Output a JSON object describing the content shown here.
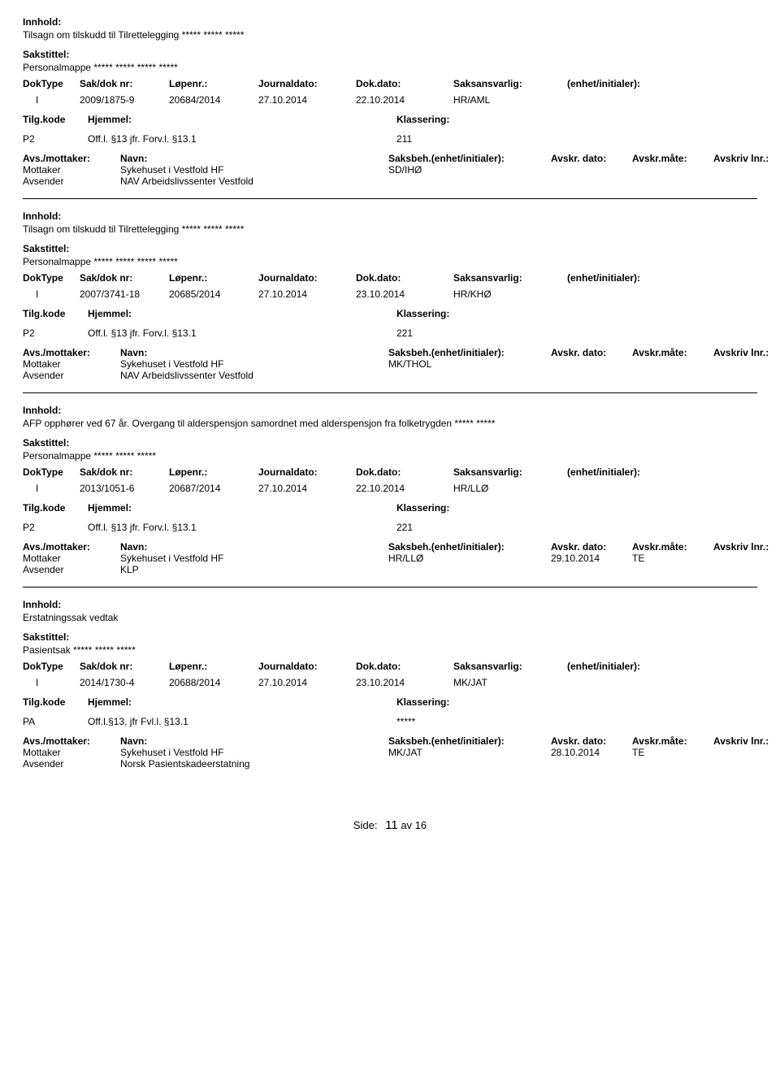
{
  "labels": {
    "innhold": "Innhold:",
    "sakstittel": "Sakstittel:",
    "dokType": "DokType",
    "sakDokNr": "Sak/dok nr:",
    "lopenr": "Løpenr.:",
    "journaldato": "Journaldato:",
    "dokDato": "Dok.dato:",
    "saksansvarlig": "Saksansvarlig:",
    "enhetInitialer": "(enhet/initialer):",
    "tilgKode": "Tilg.kode",
    "hjemmel": "Hjemmel:",
    "klassering": "Klassering:",
    "avsMottaker": "Avs./mottaker:",
    "navn": "Navn:",
    "saksbehEI": "Saksbeh.(enhet/initialer):",
    "avskrDato": "Avskr. dato:",
    "avskrMate": "Avskr.måte:",
    "avskrivLnr": "Avskriv lnr.:",
    "mottaker": "Mottaker",
    "avsender": "Avsender",
    "side": "Side:",
    "av": "av"
  },
  "footer": {
    "page": "11",
    "total": "16"
  },
  "records": [
    {
      "innhold": "Tilsagn om tilskudd til Tilrettelegging ***** ***** *****",
      "sakstittel": "Personalmappe ***** ***** ***** *****",
      "dokType": "I",
      "sakDokNr": "2009/1875-9",
      "lopenr": "20684/2014",
      "journaldato": "27.10.2014",
      "dokDato": "22.10.2014",
      "saksansvarlig": "HR/AML",
      "tilgKode": "P2",
      "hjemmel": "Off.l. §13  jfr. Forv.l. §13.1",
      "klassering": "211",
      "mottakerNavn": "Sykehuset i Vestfold HF",
      "avsenderNavn": "NAV Arbeidslivssenter Vestfold",
      "saksbeh": "SD/IHØ",
      "avskrDato": "",
      "avskrMate": ""
    },
    {
      "innhold": "Tilsagn om tilskudd til Tilrettelegging ***** ***** *****",
      "sakstittel": "Personalmappe ***** ***** ***** *****",
      "dokType": "I",
      "sakDokNr": "2007/3741-18",
      "lopenr": "20685/2014",
      "journaldato": "27.10.2014",
      "dokDato": "23.10.2014",
      "saksansvarlig": "HR/KHØ",
      "tilgKode": "P2",
      "hjemmel": "Off.l. §13  jfr. Forv.l. §13.1",
      "klassering": "221",
      "mottakerNavn": "Sykehuset i Vestfold HF",
      "avsenderNavn": "NAV Arbeidslivssenter Vestfold",
      "saksbeh": "MK/THOL",
      "avskrDato": "",
      "avskrMate": ""
    },
    {
      "innhold": "AFP opphører ved 67 år. Overgang til alderspensjon samordnet med alderspensjon fra folketrygden ***** *****",
      "sakstittel": "Personalmappe ***** ***** *****",
      "dokType": "I",
      "sakDokNr": "2013/1051-6",
      "lopenr": "20687/2014",
      "journaldato": "27.10.2014",
      "dokDato": "22.10.2014",
      "saksansvarlig": "HR/LLØ",
      "tilgKode": "P2",
      "hjemmel": "Off.l. §13  jfr. Forv.l. §13.1",
      "klassering": "221",
      "mottakerNavn": "Sykehuset i Vestfold HF",
      "avsenderNavn": "KLP",
      "saksbeh": "HR/LLØ",
      "avskrDato": "29.10.2014",
      "avskrMate": "TE"
    },
    {
      "innhold": "Erstatningssak vedtak",
      "sakstittel": "Pasientsak ***** ***** *****",
      "dokType": "I",
      "sakDokNr": "2014/1730-4",
      "lopenr": "20688/2014",
      "journaldato": "27.10.2014",
      "dokDato": "23.10.2014",
      "saksansvarlig": "MK/JAT",
      "tilgKode": "PA",
      "hjemmel": "Off.l.§13, jfr Fvl.l. §13.1",
      "klassering": "*****",
      "mottakerNavn": "Sykehuset i Vestfold HF",
      "avsenderNavn": "Norsk Pasientskadeerstatning",
      "saksbeh": "MK/JAT",
      "avskrDato": "28.10.2014",
      "avskrMate": "TE"
    }
  ]
}
